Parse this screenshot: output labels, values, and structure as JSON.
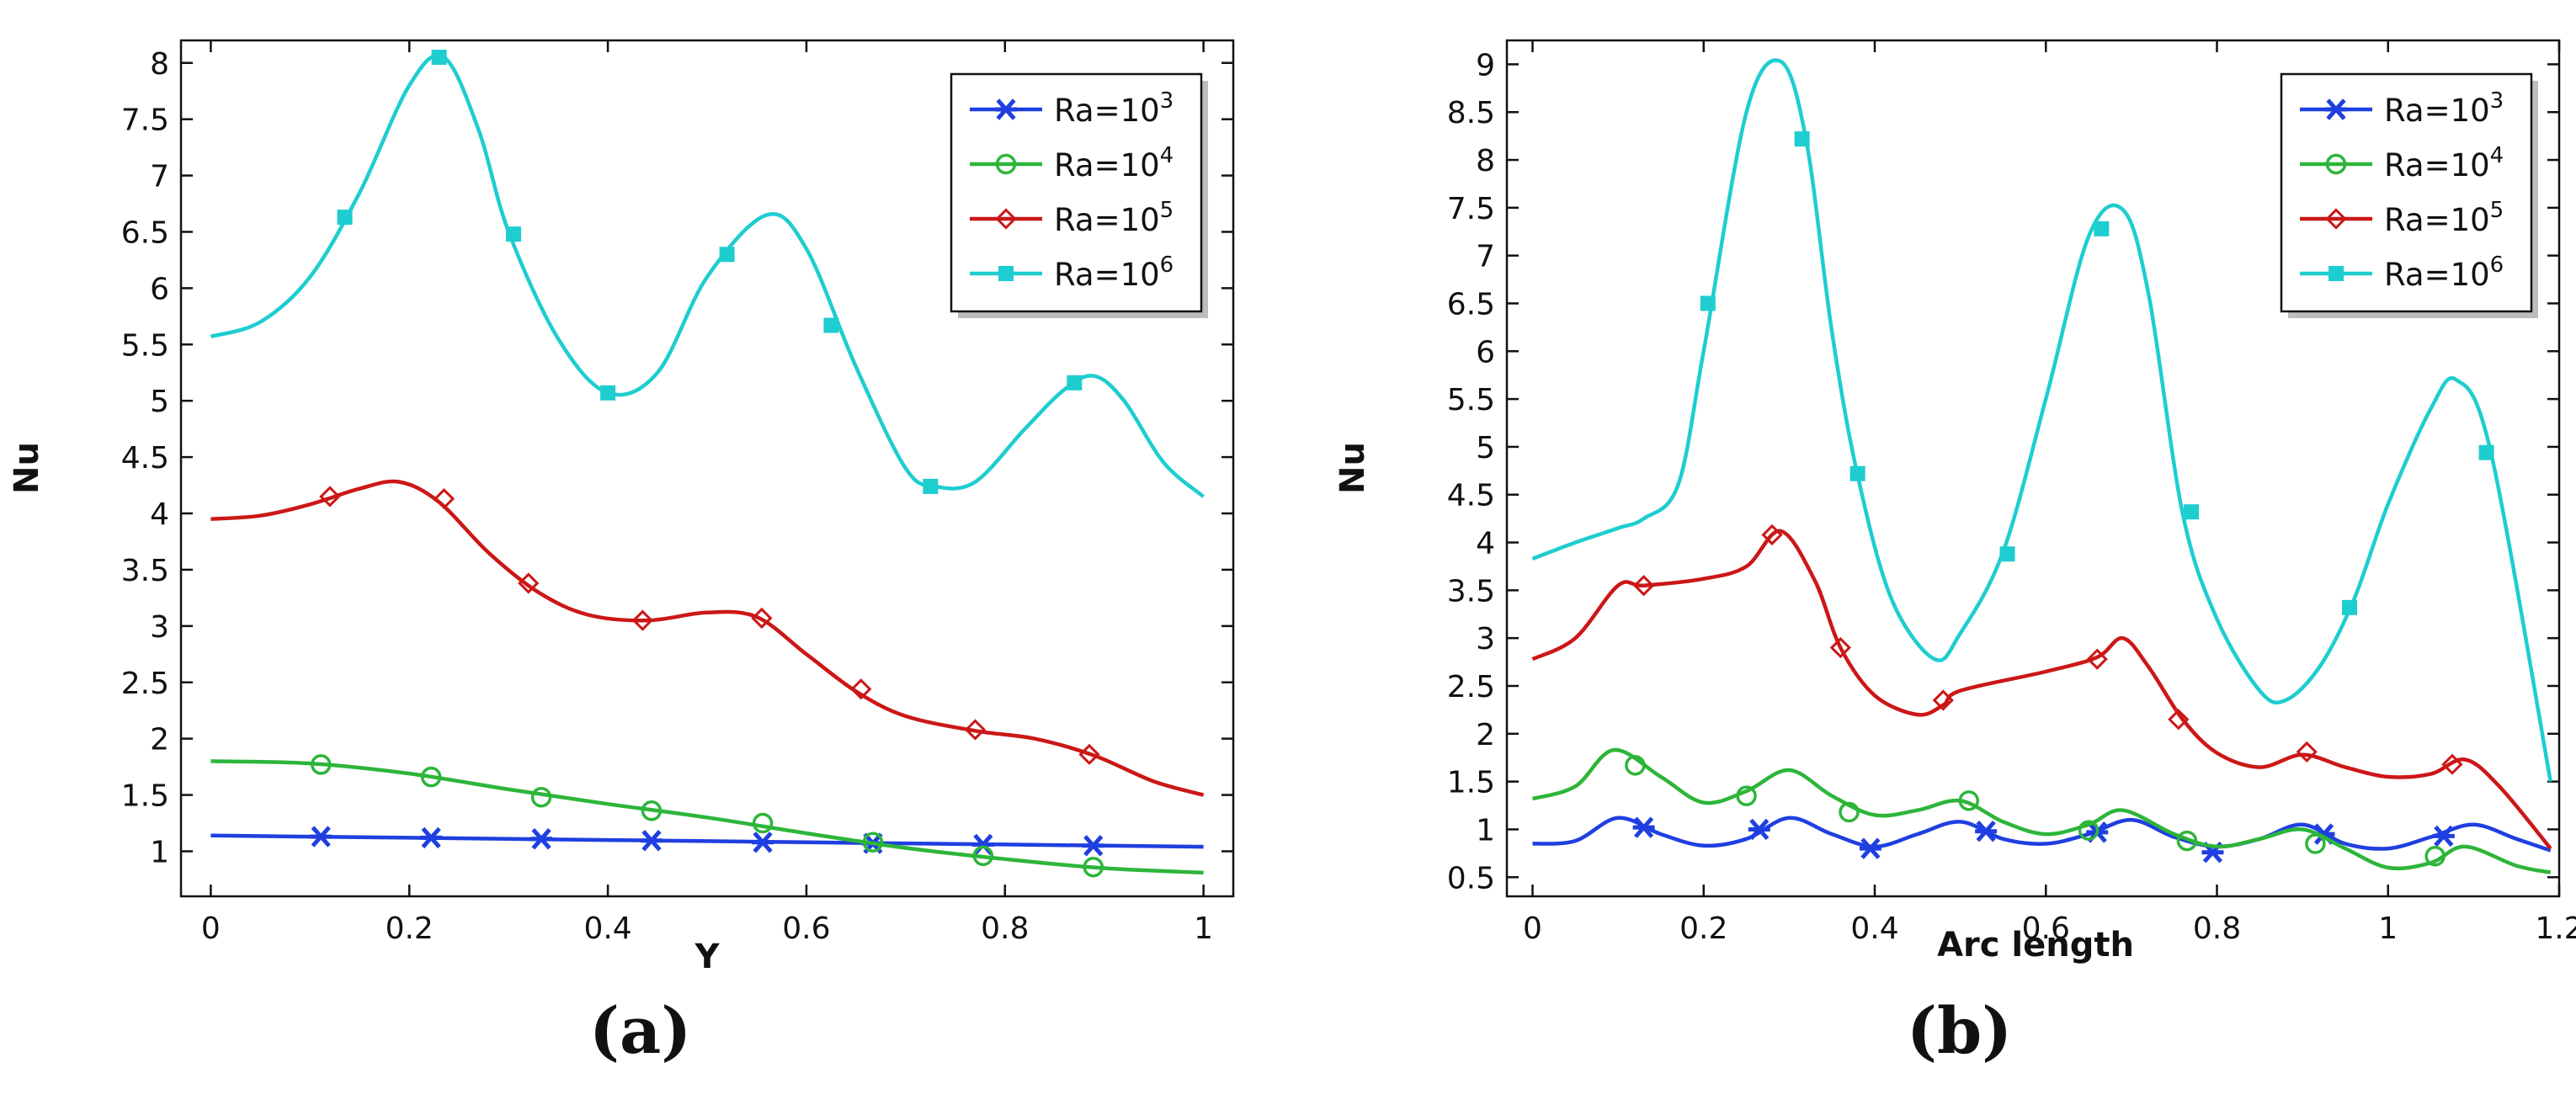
{
  "colors": {
    "ra1e3": "#1f3fe0",
    "ra1e4": "#2db53a",
    "ra1e5": "#cc1717",
    "ra1e6": "#1ecdd0"
  },
  "legend_labels": {
    "prefix": "Ra=10",
    "ra1e3_exp": "3",
    "ra1e4_exp": "4",
    "ra1e5_exp": "5",
    "ra1e6_exp": "6"
  },
  "panel_labels": {
    "a": "(a)",
    "b": "(b)"
  },
  "chart_data": [
    {
      "type": "line",
      "panel": "(a)",
      "xlabel": "Y",
      "ylabel": "Nu",
      "xlim": [
        -0.03,
        1.03
      ],
      "ylim": [
        0.6,
        8.2
      ],
      "xticks": [
        "0",
        "0.2",
        "0.4",
        "0.6",
        "0.8",
        "1"
      ],
      "yticks": [
        "1",
        "1.5",
        "2",
        "2.5",
        "3",
        "3.5",
        "4",
        "4.5",
        "5",
        "5.5",
        "6",
        "6.5",
        "7",
        "7.5",
        "8"
      ],
      "legend_position": "top-right",
      "grid": false,
      "series": [
        {
          "name": "Ra=10^3",
          "color_key": "ra1e3",
          "marker": "asterisk",
          "x": [
            0,
            0.1,
            0.2,
            0.3,
            0.4,
            0.5,
            0.6,
            0.7,
            0.8,
            0.9,
            1.0
          ],
          "y": [
            1.14,
            1.13,
            1.12,
            1.11,
            1.1,
            1.09,
            1.08,
            1.07,
            1.06,
            1.05,
            1.04
          ],
          "markers": [
            [
              0.111,
              1.13
            ],
            [
              0.222,
              1.12
            ],
            [
              0.333,
              1.11
            ],
            [
              0.444,
              1.095
            ],
            [
              0.556,
              1.08
            ],
            [
              0.667,
              1.07
            ],
            [
              0.778,
              1.06
            ],
            [
              0.889,
              1.05
            ]
          ]
        },
        {
          "name": "Ra=10^4",
          "color_key": "ra1e4",
          "marker": "circle",
          "x": [
            0,
            0.1,
            0.2,
            0.3,
            0.4,
            0.5,
            0.6,
            0.7,
            0.8,
            0.9,
            1.0
          ],
          "y": [
            1.8,
            1.78,
            1.69,
            1.55,
            1.42,
            1.3,
            1.16,
            1.03,
            0.93,
            0.85,
            0.81
          ],
          "markers": [
            [
              0.111,
              1.77
            ],
            [
              0.222,
              1.66
            ],
            [
              0.333,
              1.48
            ],
            [
              0.444,
              1.36
            ],
            [
              0.556,
              1.25
            ],
            [
              0.667,
              1.08
            ],
            [
              0.778,
              0.96
            ],
            [
              0.889,
              0.86
            ]
          ]
        },
        {
          "name": "Ra=10^5",
          "color_key": "ra1e5",
          "marker": "diamond",
          "x": [
            0,
            0.05,
            0.1,
            0.15,
            0.19,
            0.23,
            0.28,
            0.33,
            0.38,
            0.44,
            0.5,
            0.55,
            0.6,
            0.65,
            0.7,
            0.77,
            0.83,
            0.89,
            0.95,
            1.0
          ],
          "y": [
            3.95,
            3.98,
            4.08,
            4.22,
            4.28,
            4.1,
            3.65,
            3.3,
            3.1,
            3.05,
            3.12,
            3.08,
            2.75,
            2.42,
            2.2,
            2.07,
            2.0,
            1.85,
            1.62,
            1.5
          ],
          "markers": [
            [
              0.12,
              4.15
            ],
            [
              0.235,
              4.13
            ],
            [
              0.32,
              3.38
            ],
            [
              0.435,
              3.05
            ],
            [
              0.555,
              3.07
            ],
            [
              0.655,
              2.44
            ],
            [
              0.77,
              2.08
            ],
            [
              0.885,
              1.86
            ]
          ]
        },
        {
          "name": "Ra=10^6",
          "color_key": "ra1e6",
          "marker": "square",
          "x": [
            0,
            0.05,
            0.1,
            0.15,
            0.2,
            0.235,
            0.27,
            0.3,
            0.35,
            0.4,
            0.45,
            0.5,
            0.56,
            0.6,
            0.65,
            0.7,
            0.73,
            0.77,
            0.82,
            0.86,
            0.89,
            0.92,
            0.96,
            1.0
          ],
          "y": [
            5.57,
            5.7,
            6.1,
            6.85,
            7.8,
            8.05,
            7.4,
            6.5,
            5.55,
            5.07,
            5.25,
            6.1,
            6.65,
            6.35,
            5.3,
            4.4,
            4.24,
            4.28,
            4.75,
            5.1,
            5.22,
            5.0,
            4.45,
            4.15
          ],
          "markers": [
            [
              0.135,
              6.63
            ],
            [
              0.23,
              8.05
            ],
            [
              0.305,
              6.48
            ],
            [
              0.4,
              5.07
            ],
            [
              0.52,
              6.3
            ],
            [
              0.625,
              5.67
            ],
            [
              0.725,
              4.24
            ],
            [
              0.87,
              5.16
            ]
          ]
        }
      ]
    },
    {
      "type": "line",
      "panel": "(b)",
      "xlabel": "Arc length",
      "ylabel": "Nu",
      "xlim": [
        -0.03,
        1.2
      ],
      "ylim": [
        0.3,
        9.25
      ],
      "xticks": [
        "0",
        "0.2",
        "0.4",
        "0.6",
        "0.8",
        "1",
        "1.2"
      ],
      "yticks": [
        "0.5",
        "1",
        "1.5",
        "2",
        "2.5",
        "3",
        "3.5",
        "4",
        "4.5",
        "5",
        "5.5",
        "6",
        "6.5",
        "7",
        "7.5",
        "8",
        "8.5",
        "9"
      ],
      "legend_position": "top-right",
      "grid": false,
      "series": [
        {
          "name": "Ra=10^3",
          "color_key": "ra1e3",
          "marker": "asterisk",
          "x": [
            0,
            0.05,
            0.1,
            0.15,
            0.2,
            0.25,
            0.3,
            0.35,
            0.4,
            0.45,
            0.5,
            0.55,
            0.6,
            0.65,
            0.7,
            0.75,
            0.8,
            0.85,
            0.9,
            0.95,
            1.0,
            1.05,
            1.1,
            1.15,
            1.19
          ],
          "y": [
            0.85,
            0.88,
            1.12,
            0.95,
            0.83,
            0.9,
            1.12,
            0.95,
            0.82,
            0.95,
            1.08,
            0.9,
            0.85,
            0.95,
            1.1,
            0.92,
            0.82,
            0.9,
            1.05,
            0.85,
            0.8,
            0.92,
            1.05,
            0.9,
            0.78
          ],
          "markers": [
            [
              0.13,
              1.02
            ],
            [
              0.265,
              1.0
            ],
            [
              0.395,
              0.8
            ],
            [
              0.53,
              0.98
            ],
            [
              0.66,
              0.97
            ],
            [
              0.795,
              0.76
            ],
            [
              0.925,
              0.95
            ],
            [
              1.065,
              0.93
            ]
          ]
        },
        {
          "name": "Ra=10^4",
          "color_key": "ra1e4",
          "marker": "circle",
          "x": [
            0,
            0.05,
            0.095,
            0.15,
            0.2,
            0.25,
            0.3,
            0.35,
            0.4,
            0.45,
            0.5,
            0.55,
            0.6,
            0.65,
            0.69,
            0.75,
            0.8,
            0.85,
            0.9,
            0.95,
            1.0,
            1.05,
            1.09,
            1.15,
            1.19
          ],
          "y": [
            1.32,
            1.45,
            1.83,
            1.55,
            1.28,
            1.4,
            1.62,
            1.35,
            1.15,
            1.2,
            1.3,
            1.08,
            0.95,
            1.05,
            1.2,
            0.95,
            0.82,
            0.9,
            1.0,
            0.8,
            0.6,
            0.65,
            0.82,
            0.62,
            0.55
          ],
          "markers": [
            [
              0.12,
              1.67
            ],
            [
              0.25,
              1.35
            ],
            [
              0.37,
              1.18
            ],
            [
              0.51,
              1.3
            ],
            [
              0.65,
              0.99
            ],
            [
              0.765,
              0.88
            ],
            [
              0.915,
              0.85
            ],
            [
              1.055,
              0.72
            ]
          ]
        },
        {
          "name": "Ra=10^5",
          "color_key": "ra1e5",
          "marker": "diamond",
          "x": [
            0,
            0.05,
            0.1,
            0.13,
            0.2,
            0.25,
            0.29,
            0.33,
            0.36,
            0.4,
            0.45,
            0.48,
            0.5,
            0.6,
            0.66,
            0.69,
            0.72,
            0.76,
            0.8,
            0.85,
            0.9,
            0.95,
            1.0,
            1.05,
            1.09,
            1.13,
            1.19
          ],
          "y": [
            2.78,
            3.0,
            3.55,
            3.55,
            3.62,
            3.75,
            4.12,
            3.6,
            2.9,
            2.4,
            2.2,
            2.3,
            2.45,
            2.65,
            2.8,
            3.0,
            2.7,
            2.15,
            1.8,
            1.65,
            1.78,
            1.65,
            1.55,
            1.58,
            1.73,
            1.45,
            0.8
          ],
          "markers": [
            [
              0.13,
              3.55
            ],
            [
              0.28,
              4.08
            ],
            [
              0.36,
              2.9
            ],
            [
              0.48,
              2.35
            ],
            [
              0.66,
              2.78
            ],
            [
              0.755,
              2.15
            ],
            [
              0.905,
              1.81
            ],
            [
              1.075,
              1.68
            ]
          ]
        },
        {
          "name": "Ra=10^6",
          "color_key": "ra1e6",
          "marker": "square",
          "x": [
            0,
            0.05,
            0.1,
            0.13,
            0.17,
            0.2,
            0.25,
            0.29,
            0.32,
            0.35,
            0.38,
            0.42,
            0.47,
            0.5,
            0.55,
            0.6,
            0.65,
            0.69,
            0.72,
            0.76,
            0.8,
            0.85,
            0.88,
            0.92,
            0.96,
            1.0,
            1.05,
            1.08,
            1.12,
            1.19
          ],
          "y": [
            3.83,
            4.0,
            4.15,
            4.25,
            4.6,
            6.0,
            8.5,
            9.03,
            8.2,
            6.2,
            4.7,
            3.4,
            2.78,
            3.05,
            3.9,
            5.5,
            7.2,
            7.48,
            6.6,
            4.3,
            3.2,
            2.45,
            2.35,
            2.7,
            3.4,
            4.4,
            5.4,
            5.7,
            4.95,
            1.5
          ],
          "markers": [
            [
              0.205,
              6.5
            ],
            [
              0.315,
              8.22
            ],
            [
              0.38,
              4.72
            ],
            [
              0.555,
              3.88
            ],
            [
              0.665,
              7.28
            ],
            [
              0.77,
              4.32
            ],
            [
              0.955,
              3.32
            ],
            [
              1.115,
              4.94
            ]
          ]
        }
      ]
    }
  ]
}
